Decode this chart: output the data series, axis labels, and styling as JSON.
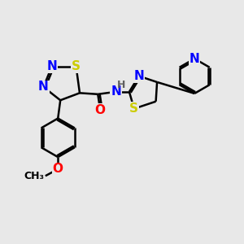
{
  "bg_color": "#e8e8e8",
  "bond_color": "#000000",
  "bond_width": 1.8,
  "atom_colors": {
    "N": "#0000ff",
    "S": "#cccc00",
    "O": "#ff0000",
    "C": "#000000",
    "H": "#606060"
  },
  "font_size_atom": 11,
  "font_size_h": 9,
  "font_size_methyl": 9
}
